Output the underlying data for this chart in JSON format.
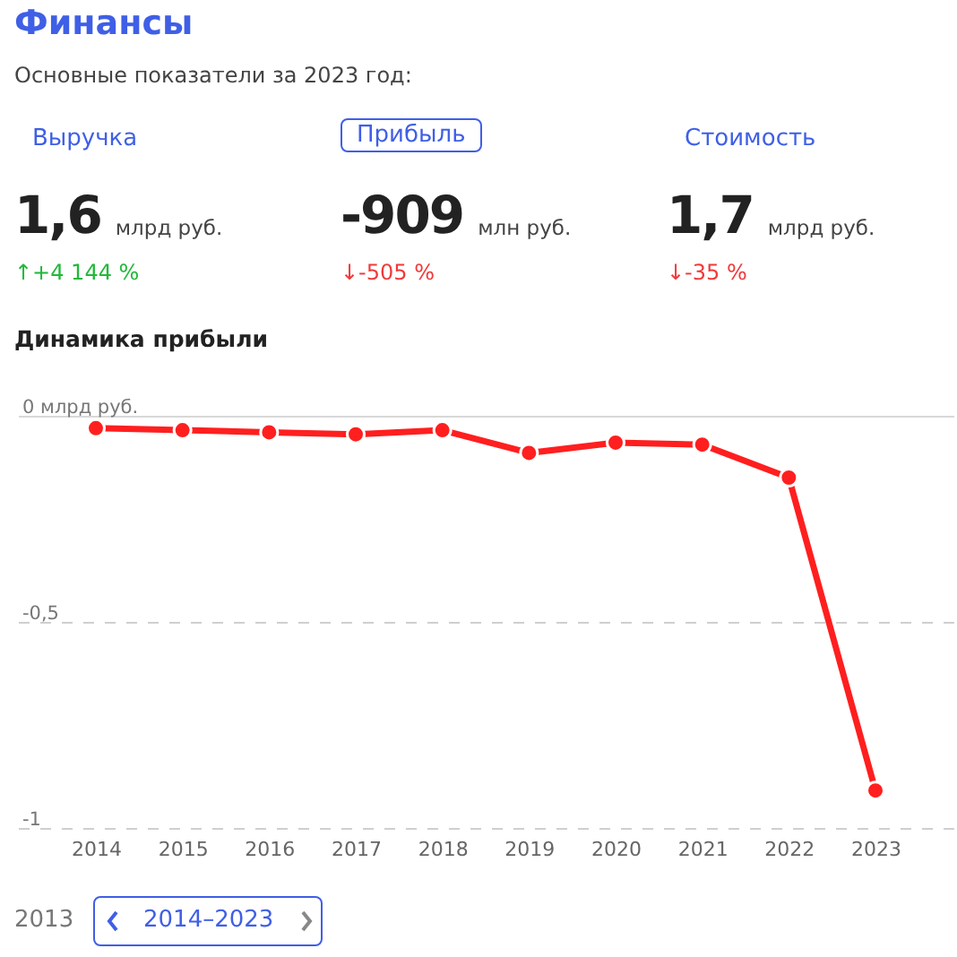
{
  "chart_data": [
    {
      "type": "other",
      "title": "Финансы",
      "subtitle": "Основные показатели за 2023 год:",
      "annotations": [
        "Выручка",
        "1,6",
        "млрд руб.",
        "↑+4 144 %",
        "Прибыль",
        "-909",
        "млн руб.",
        "↓-505 %",
        "Стоимость",
        "1,7",
        "млрд руб.",
        "↓-35 %"
      ]
    },
    {
      "type": "line",
      "title": "Динамика прибыли",
      "categories": [
        "2014",
        "2015",
        "2016",
        "2017",
        "2018",
        "2019",
        "2020",
        "2021",
        "2022",
        "2023"
      ],
      "series": [
        {
          "color": "#ff1f1f",
          "values": [
            -0.03,
            -0.035,
            -0.04,
            -0.045,
            -0.035,
            -0.09,
            -0.065,
            -0.07,
            -0.15,
            -0.909
          ]
        }
      ],
      "ylim": [
        -1,
        0
      ],
      "yticks": [
        {
          "value": 0,
          "label": "0 млрд руб."
        },
        {
          "value": -0.5,
          "label": "-0,5"
        },
        {
          "value": -1,
          "label": "-1"
        }
      ],
      "grid": "y",
      "marker": "circle",
      "line_style": "solid",
      "legend": false,
      "annotations": [
        "2013",
        "2014–2023"
      ]
    }
  ]
}
